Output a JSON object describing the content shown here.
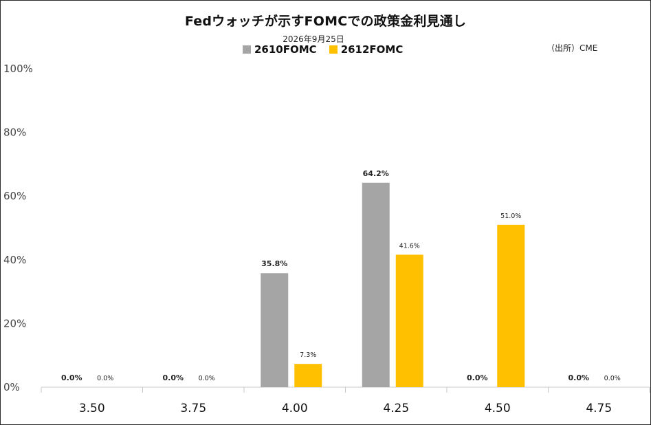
{
  "chart_data": {
    "type": "bar",
    "title": "Fedウォッチが示すFOMCでの政策金利見通し",
    "subtitle": "2026年9月25日",
    "source": "（出所）CME",
    "categories": [
      "3.50",
      "3.75",
      "4.00",
      "4.25",
      "4.50",
      "4.75"
    ],
    "series": [
      {
        "name": "2610FOMC",
        "color": "#a5a5a5",
        "values": [
          0.0,
          0.0,
          35.8,
          64.2,
          0.0,
          0.0
        ],
        "labels": [
          "0.0%",
          "0.0%",
          "35.8%",
          "64.2%",
          "0.0%",
          "0.0%"
        ]
      },
      {
        "name": "2612FOMC",
        "color": "#ffc000",
        "values": [
          0.0,
          0.0,
          7.3,
          41.6,
          51.0,
          0.0
        ],
        "labels": [
          "0.0%",
          "0.0%",
          "7.3%",
          "41.6%",
          "51.0%",
          "0.0%"
        ]
      }
    ],
    "y_ticks": [
      "0%",
      "20%",
      "40%",
      "60%",
      "80%",
      "100%"
    ],
    "ylim": [
      0,
      100
    ],
    "grid": false,
    "legend_position": "top-center"
  }
}
